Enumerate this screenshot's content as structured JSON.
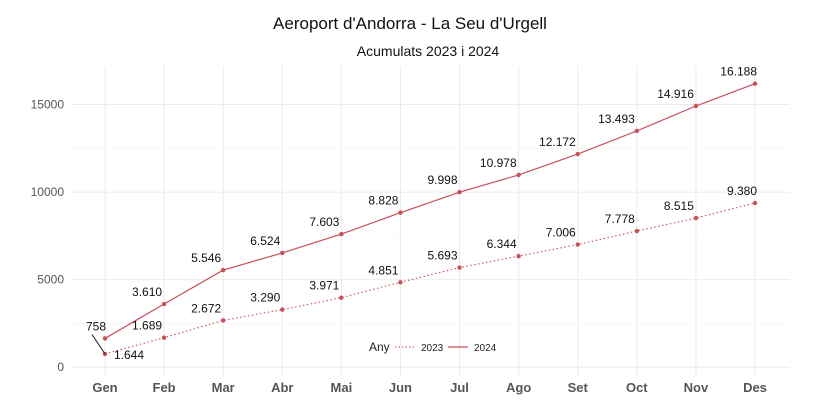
{
  "chart_data": {
    "type": "line",
    "title": "Aeroport d'Andorra - La Seu d'Urgell",
    "subtitle": "Acumulats 2023 i 2024",
    "xlabel": "",
    "ylabel": "",
    "categories": [
      "Gen",
      "Feb",
      "Mar",
      "Abr",
      "Mai",
      "Jun",
      "Jul",
      "Ago",
      "Set",
      "Oct",
      "Nov",
      "Des"
    ],
    "ylim": [
      -500,
      17200
    ],
    "yticks": [
      0,
      5000,
      10000,
      15000
    ],
    "grid": true,
    "legend": {
      "title": "Any",
      "placement": "bottom-center-inside"
    },
    "series": [
      {
        "name": "2023",
        "line_style": "dotted",
        "color": "#c9505a",
        "values": [
          758,
          1689,
          2672,
          3290,
          3971,
          4851,
          5693,
          6344,
          7006,
          7778,
          8515,
          9380
        ],
        "labels": [
          "758",
          "1.689",
          "2.672",
          "3.290",
          "3.971",
          "4.851",
          "5.693",
          "6.344",
          "7.006",
          "7.778",
          "8.515",
          "9.380"
        ]
      },
      {
        "name": "2024",
        "line_style": "solid",
        "color": "#c9505a",
        "values": [
          1644,
          3610,
          5546,
          6524,
          7603,
          8828,
          9998,
          10978,
          12172,
          13493,
          14916,
          16188
        ],
        "labels": [
          "1.644",
          "3.610",
          "5.546",
          "6.524",
          "7.603",
          "8.828",
          "9.998",
          "10.978",
          "12.172",
          "13.493",
          "14.916",
          "16.188"
        ]
      }
    ]
  }
}
